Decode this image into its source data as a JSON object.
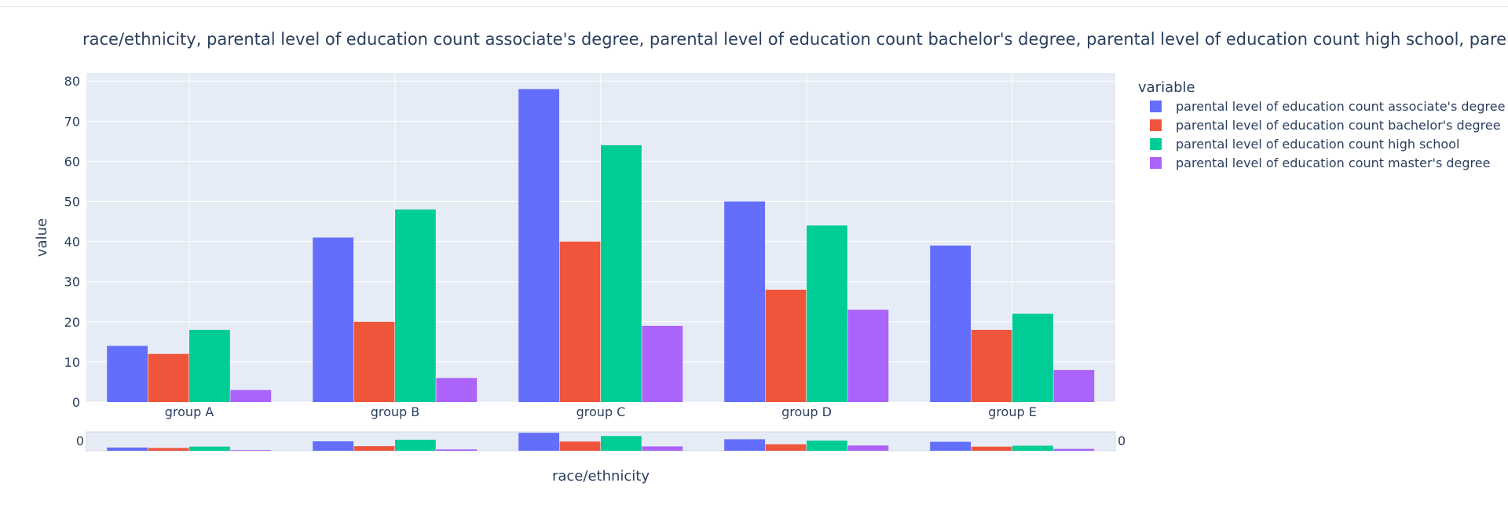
{
  "chart_data": {
    "type": "bar",
    "barmode": "group",
    "title": "race/ethnicity, parental level of education count associate's degree, parental level of education count bachelor's degree, parental level of education count high school, parental level of education count master's degree",
    "xlabel": "race/ethnicity",
    "ylabel": "value",
    "ylim": [
      0,
      82
    ],
    "yticks": [
      0,
      10,
      20,
      30,
      40,
      50,
      60,
      70,
      80
    ],
    "categories": [
      "group A",
      "group B",
      "group C",
      "group D",
      "group E"
    ],
    "legend_title": "variable",
    "legend_position": "right",
    "plot_background": "#e5ecf6",
    "gridlines": true,
    "rangeslider": true,
    "rangeslider_end_labels": [
      "0",
      "0"
    ],
    "series": [
      {
        "name": "parental level of education count associate's degree",
        "color": "#636efa",
        "values": [
          14,
          41,
          78,
          50,
          39
        ]
      },
      {
        "name": "parental level of education count bachelor's degree",
        "color": "#ef553b",
        "values": [
          12,
          20,
          40,
          28,
          18
        ]
      },
      {
        "name": "parental level of education count high school",
        "color": "#00cc96",
        "values": [
          18,
          48,
          64,
          44,
          22
        ]
      },
      {
        "name": "parental level of education count master's degree",
        "color": "#ab63fa",
        "values": [
          3,
          6,
          19,
          23,
          8
        ]
      }
    ]
  }
}
